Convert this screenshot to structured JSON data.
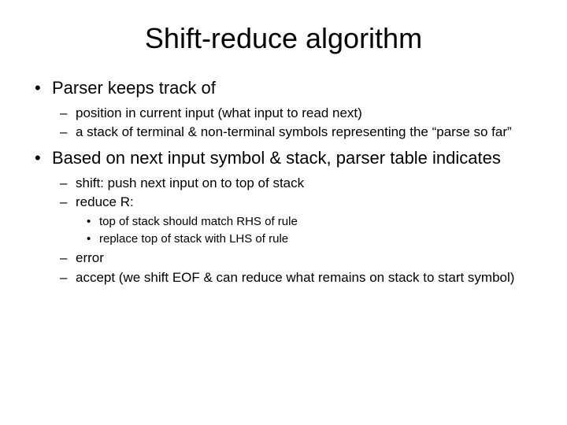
{
  "title": "Shift-reduce algorithm",
  "bullets": [
    {
      "text": "Parser keeps track of",
      "sub": [
        {
          "text": "position in current input (what input to read next)"
        },
        {
          "text": "a stack of terminal & non-terminal symbols representing the “parse so far”"
        }
      ]
    },
    {
      "text": "Based on next input symbol & stack, parser table indicates",
      "sub": [
        {
          "text": "shift: push next input on to top of stack"
        },
        {
          "text": "reduce R:",
          "sub": [
            {
              "text": "top of stack should match RHS of rule"
            },
            {
              "text": "replace top of stack with LHS of rule"
            }
          ]
        },
        {
          "text": "error"
        },
        {
          "text": "accept (we shift EOF & can reduce what remains on stack to start symbol)"
        }
      ]
    }
  ],
  "style": {
    "background": "#ffffff",
    "text_color": "#000000",
    "font_family": "Arial",
    "title_fontsize": 36,
    "lvl1_fontsize": 22,
    "lvl2_fontsize": 17,
    "lvl3_fontsize": 15,
    "lvl1_marker": "•",
    "lvl2_marker": "–",
    "lvl3_marker": "•"
  }
}
